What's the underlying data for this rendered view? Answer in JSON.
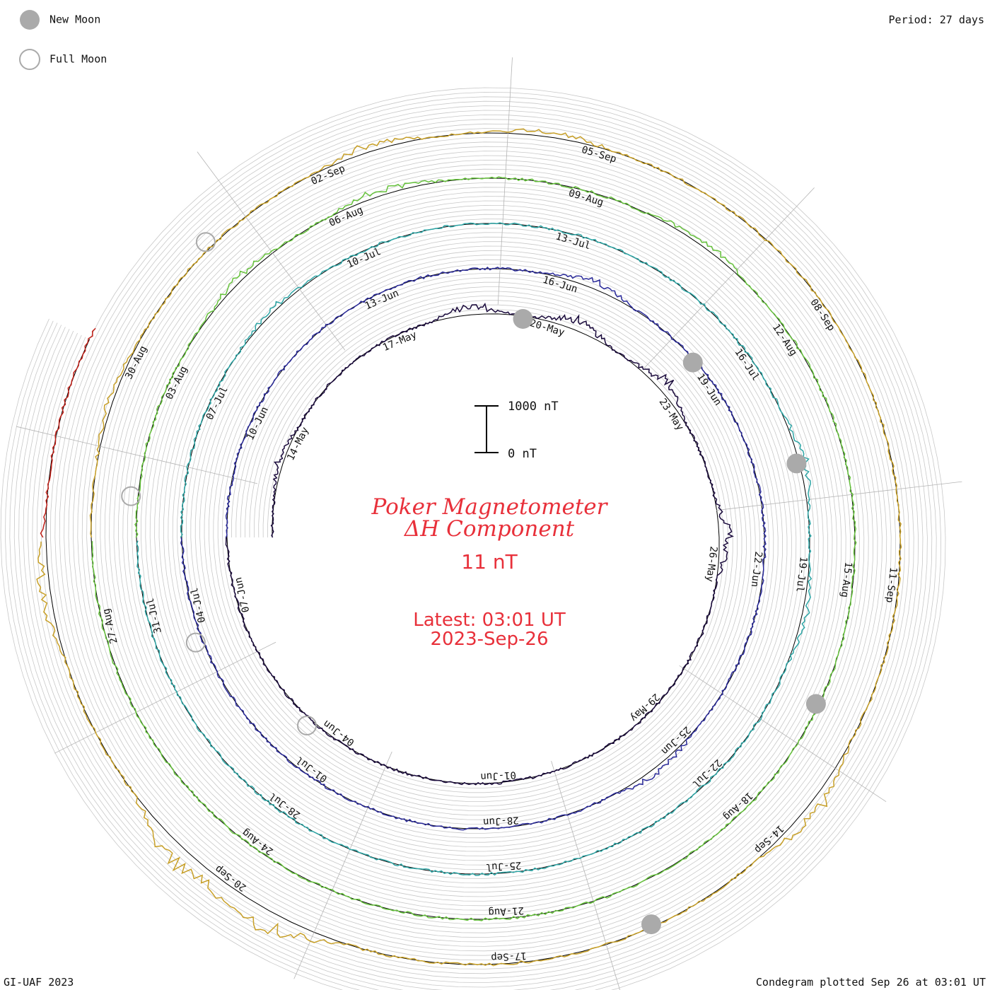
{
  "legend": {
    "new_moon_label": "New Moon",
    "full_moon_label": "Full Moon"
  },
  "period_label": "Period: 27 days",
  "title_line1": "Poker Magnetometer",
  "title_line2": "ΔH Component",
  "current_value": "11 nT",
  "latest_label": "Latest: 03:01 UT",
  "latest_date": "2023-Sep-26",
  "scale": {
    "top_label": "1000 nT",
    "bottom_label": "0 nT"
  },
  "footer_left": "GI-UAF 2023",
  "footer_right": "Condegram plotted Sep 26 at 03:01 UT",
  "colors": {
    "text_red": "#e8303a",
    "moon_fill": "#aaaaaa",
    "grid": "#c8c8c8",
    "spoke": "#b4b4b4"
  },
  "chart_data": {
    "type": "line",
    "chart_style": "spiral condegram",
    "period_days": 27,
    "start_date": "2023-05-12",
    "end_date": "2023-09-26",
    "y_unit": "nT",
    "scale_bar": [
      0,
      1000
    ],
    "turns": [
      {
        "start": "2023-05-12",
        "color": "#1a0a3c"
      },
      {
        "start": "2023-06-08",
        "color": "#2a2a9a"
      },
      {
        "start": "2023-07-05",
        "color": "#2ea6a6"
      },
      {
        "start": "2023-08-01",
        "color": "#66c23c"
      },
      {
        "start": "2023-08-28",
        "color": "#c8a028"
      },
      {
        "start": "2023-09-24",
        "color": "#c02018"
      }
    ],
    "date_labels": [
      "14-May",
      "17-May",
      "20-May",
      "23-May",
      "26-May",
      "29-May",
      "01-Jun",
      "04-Jun",
      "07-Jun",
      "10-Jun",
      "13-Jun",
      "16-Jun",
      "19-Jun",
      "22-Jun",
      "25-Jun",
      "28-Jun",
      "01-Jul",
      "04-Jul",
      "07-Jul",
      "10-Jul",
      "13-Jul",
      "16-Jul",
      "19-Jul",
      "22-Jul",
      "25-Jul",
      "28-Jul",
      "31-Jul",
      "03-Aug",
      "06-Aug",
      "09-Aug",
      "12-Aug",
      "15-Aug",
      "18-Aug",
      "21-Aug",
      "24-Aug",
      "27-Aug",
      "30-Aug",
      "02-Sep",
      "05-Sep",
      "08-Sep",
      "11-Sep",
      "14-Sep",
      "17-Sep",
      "20-Sep"
    ],
    "new_moons": [
      "2023-05-19",
      "2023-06-18",
      "2023-07-17",
      "2023-08-16",
      "2023-09-15"
    ],
    "full_moons": [
      "2023-06-04",
      "2023-07-03",
      "2023-08-01",
      "2023-08-31"
    ],
    "disturbances": [
      {
        "date": "2023-05-13",
        "value": -120
      },
      {
        "date": "2023-05-18",
        "value": -200
      },
      {
        "date": "2023-05-20",
        "value": -220
      },
      {
        "date": "2023-05-22",
        "value": -240
      },
      {
        "date": "2023-05-25",
        "value": -220
      },
      {
        "date": "2023-06-16",
        "value": -160
      },
      {
        "date": "2023-06-25",
        "value": -150
      },
      {
        "date": "2023-07-08",
        "value": -80
      },
      {
        "date": "2023-07-17",
        "value": -140
      },
      {
        "date": "2023-07-19",
        "value": -120
      },
      {
        "date": "2023-08-04",
        "value": -110
      },
      {
        "date": "2023-08-06",
        "value": -130
      },
      {
        "date": "2023-08-10",
        "value": -120
      },
      {
        "date": "2023-08-29",
        "value": -90
      },
      {
        "date": "2023-09-02",
        "value": -140
      },
      {
        "date": "2023-09-04",
        "value": -110
      },
      {
        "date": "2023-09-13",
        "value": -240
      },
      {
        "date": "2023-09-19",
        "value": -420
      },
      {
        "date": "2023-09-20",
        "value": -380
      },
      {
        "date": "2023-09-23",
        "value": -200
      }
    ]
  }
}
